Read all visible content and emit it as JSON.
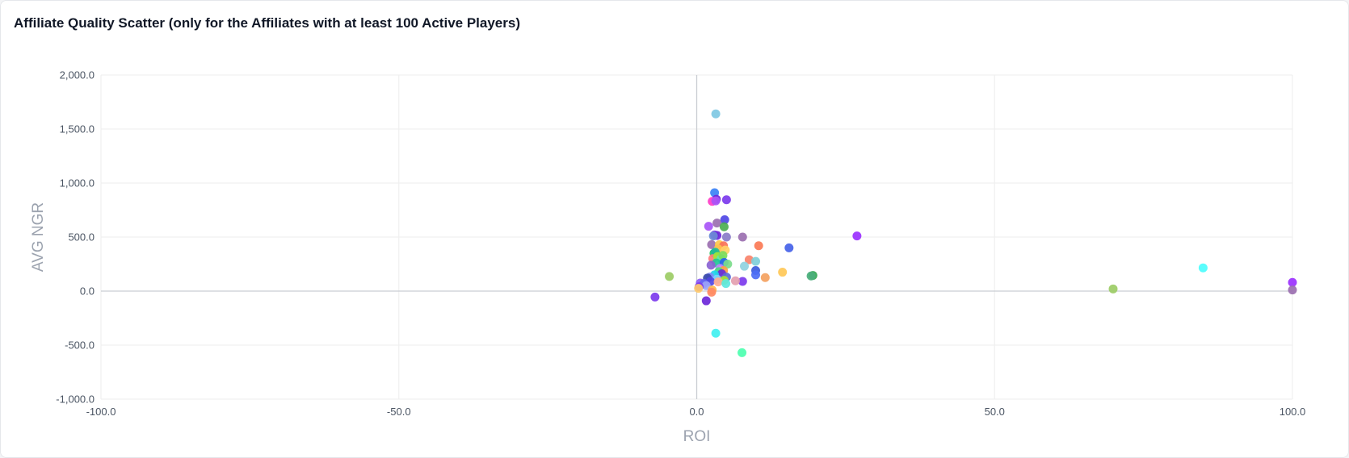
{
  "chart_data": {
    "type": "scatter",
    "title": "Affiliate Quality Scatter (only for the Affiliates with at least 100 Active Players)",
    "xlabel": "ROI",
    "ylabel": "AVG NGR",
    "xlim": [
      -100,
      100
    ],
    "ylim": [
      -1000,
      2000
    ],
    "x_ticks": [
      -100,
      -50,
      0,
      50,
      100
    ],
    "x_tick_labels": [
      "-100.0",
      "-50.0",
      "0.0",
      "50.0",
      "100.0"
    ],
    "y_ticks": [
      -1000,
      -500,
      0,
      500,
      1000,
      1500,
      2000
    ],
    "y_tick_labels": [
      "-1,000.0",
      "-500.0",
      "0.0",
      "500.0",
      "1,000.0",
      "1,500.0",
      "2,000.0"
    ],
    "grid": true,
    "legend": "none",
    "points": [
      {
        "x": 3.2,
        "y": 1640,
        "color": "#7ec8e3"
      },
      {
        "x": 3.0,
        "y": 910,
        "color": "#3b82f6"
      },
      {
        "x": 3.3,
        "y": 850,
        "color": "#6d28d9"
      },
      {
        "x": 5.0,
        "y": 845,
        "color": "#7c3aed"
      },
      {
        "x": 2.6,
        "y": 830,
        "color": "#ff3cc7"
      },
      {
        "x": 3.2,
        "y": 835,
        "color": "#a855f7"
      },
      {
        "x": 4.7,
        "y": 660,
        "color": "#4f46e5"
      },
      {
        "x": 3.4,
        "y": 630,
        "color": "#9b6fb0"
      },
      {
        "x": 2.0,
        "y": 600,
        "color": "#a855f7"
      },
      {
        "x": 4.6,
        "y": 595,
        "color": "#4caf50"
      },
      {
        "x": 3.0,
        "y": 520,
        "color": "#7c3aed"
      },
      {
        "x": 3.4,
        "y": 515,
        "color": "#6d28d9"
      },
      {
        "x": 2.8,
        "y": 510,
        "color": "#6b8bd6"
      },
      {
        "x": 5.0,
        "y": 500,
        "color": "#8a7cc8"
      },
      {
        "x": 7.7,
        "y": 500,
        "color": "#9b6fb0"
      },
      {
        "x": 26.9,
        "y": 510,
        "color": "#9b30ff"
      },
      {
        "x": 2.5,
        "y": 430,
        "color": "#9b6fb0"
      },
      {
        "x": 3.8,
        "y": 430,
        "color": "#ffc84a"
      },
      {
        "x": 4.5,
        "y": 420,
        "color": "#f97359"
      },
      {
        "x": 10.4,
        "y": 420,
        "color": "#fb7a55"
      },
      {
        "x": 15.5,
        "y": 400,
        "color": "#4562e8"
      },
      {
        "x": 3.6,
        "y": 390,
        "color": "#ffc04d"
      },
      {
        "x": 4.8,
        "y": 380,
        "color": "#ffd166"
      },
      {
        "x": 2.9,
        "y": 350,
        "color": "#22c55e"
      },
      {
        "x": 3.1,
        "y": 360,
        "color": "#1fb89a"
      },
      {
        "x": 2.7,
        "y": 300,
        "color": "#ff7b7b"
      },
      {
        "x": 3.5,
        "y": 320,
        "color": "#a3e635"
      },
      {
        "x": 4.1,
        "y": 300,
        "color": "#5ee7b0"
      },
      {
        "x": 4.4,
        "y": 330,
        "color": "#7ddc5a"
      },
      {
        "x": 8.8,
        "y": 290,
        "color": "#f9836b"
      },
      {
        "x": 9.9,
        "y": 275,
        "color": "#7fcfd9"
      },
      {
        "x": 3.3,
        "y": 260,
        "color": "#20c997"
      },
      {
        "x": 4.6,
        "y": 265,
        "color": "#2563eb"
      },
      {
        "x": 5.2,
        "y": 250,
        "color": "#7bdc8a"
      },
      {
        "x": 8.0,
        "y": 230,
        "color": "#8fd3e0"
      },
      {
        "x": 2.4,
        "y": 240,
        "color": "#8a63d2"
      },
      {
        "x": 3.9,
        "y": 210,
        "color": "#c084fc"
      },
      {
        "x": 4.5,
        "y": 190,
        "color": "#ff9f43"
      },
      {
        "x": 3.7,
        "y": 180,
        "color": "#4ade80"
      },
      {
        "x": 9.9,
        "y": 190,
        "color": "#3b5bdb"
      },
      {
        "x": 14.4,
        "y": 175,
        "color": "#ffc857"
      },
      {
        "x": 4.2,
        "y": 160,
        "color": "#6d28d9"
      },
      {
        "x": 3.0,
        "y": 150,
        "color": "#22d3ee"
      },
      {
        "x": 9.9,
        "y": 150,
        "color": "#4c6ef5"
      },
      {
        "x": 19.5,
        "y": 145,
        "color": "#34a853"
      },
      {
        "x": 19.2,
        "y": 140,
        "color": "#4caf7d"
      },
      {
        "x": 2.2,
        "y": 130,
        "color": "#818cf8"
      },
      {
        "x": 5.0,
        "y": 130,
        "color": "#5b6bd6"
      },
      {
        "x": 11.5,
        "y": 125,
        "color": "#f4a261"
      },
      {
        "x": -4.6,
        "y": 135,
        "color": "#9ccc65"
      },
      {
        "x": 1.8,
        "y": 120,
        "color": "#3949ab"
      },
      {
        "x": 3.4,
        "y": 110,
        "color": "#7dd3fc"
      },
      {
        "x": 4.6,
        "y": 100,
        "color": "#a3e635"
      },
      {
        "x": 7.7,
        "y": 90,
        "color": "#7c3aed"
      },
      {
        "x": 6.5,
        "y": 95,
        "color": "#e4a0b0"
      },
      {
        "x": 2.3,
        "y": 90,
        "color": "#4f46e5"
      },
      {
        "x": 3.6,
        "y": 85,
        "color": "#ffab91"
      },
      {
        "x": 4.9,
        "y": 70,
        "color": "#5ee7df"
      },
      {
        "x": 0.6,
        "y": 75,
        "color": "#8b5cf6"
      },
      {
        "x": 1.2,
        "y": 70,
        "color": "#6366f1"
      },
      {
        "x": 1.6,
        "y": 50,
        "color": "#9ca3f7"
      },
      {
        "x": 0.4,
        "y": 40,
        "color": "#7c3aed"
      },
      {
        "x": 0.3,
        "y": 25,
        "color": "#ffcb6b"
      },
      {
        "x": 2.6,
        "y": 10,
        "color": "#ffb74d"
      },
      {
        "x": 2.5,
        "y": -10,
        "color": "#ff8a65"
      },
      {
        "x": 69.9,
        "y": 20,
        "color": "#9ccc65"
      },
      {
        "x": 85.0,
        "y": 215,
        "color": "#4dfdfd"
      },
      {
        "x": 100.0,
        "y": 80,
        "color": "#9b30ff"
      },
      {
        "x": 100.0,
        "y": 10,
        "color": "#9b6fb0"
      },
      {
        "x": -7.0,
        "y": -55,
        "color": "#7c3aed"
      },
      {
        "x": 1.6,
        "y": -90,
        "color": "#6d28d9"
      },
      {
        "x": 3.2,
        "y": -390,
        "color": "#40f0f0"
      },
      {
        "x": 7.6,
        "y": -570,
        "color": "#4dffb0"
      }
    ]
  }
}
